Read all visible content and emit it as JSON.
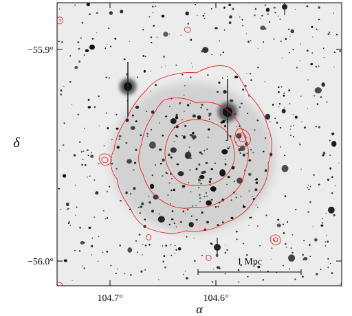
{
  "figure": {
    "x_axis": {
      "symbol": "α",
      "ticks": [
        "104.7°",
        "104.6°"
      ]
    },
    "y_axis": {
      "symbol": "δ",
      "ticks": [
        "−55.9°",
        "−56.0°"
      ]
    },
    "scale_bar": {
      "label": "1 Mpc"
    },
    "colors": {
      "contours": "#e8221f",
      "frame": "#000000",
      "sky_background": "#e9e9e9",
      "sources": "#111111"
    },
    "image_description_type": "optical image with X-ray surface brightness contours"
  }
}
